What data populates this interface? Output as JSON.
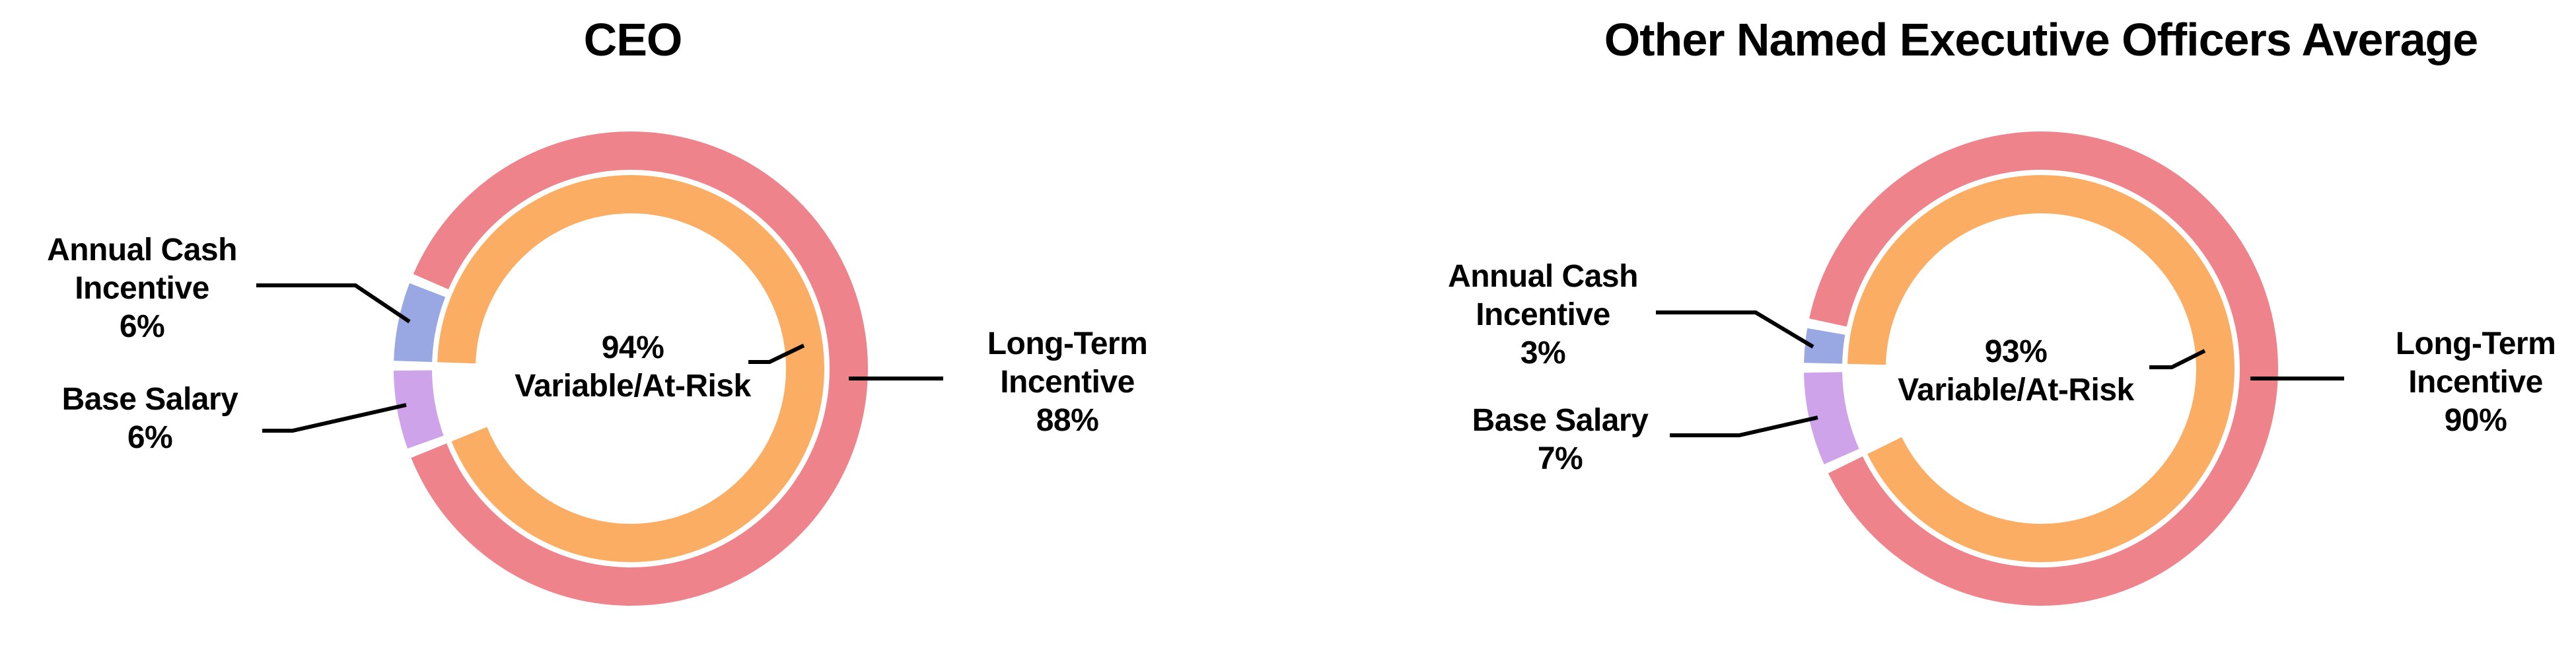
{
  "chart_data": [
    {
      "type": "donut",
      "title": "CEO",
      "legend_position": "none",
      "center_label": {
        "line1": "94%",
        "line2": "Variable/At-Risk"
      },
      "inner_ring": {
        "name": "variable-at-risk",
        "value": 94,
        "color": "#fbae63"
      },
      "segments": [
        {
          "name": "base-salary",
          "value": 6,
          "color": "#cea3ea",
          "label_lines": [
            "Base Salary"
          ],
          "pct_label": "6%"
        },
        {
          "name": "annual-cash-incentive",
          "value": 6,
          "color": "#99a8e3",
          "label_lines": [
            "Annual Cash",
            "Incentive"
          ],
          "pct_label": "6%"
        },
        {
          "name": "long-term-incentive",
          "value": 88,
          "color": "#ef838b",
          "label_lines": [
            "Long-Term",
            "Incentive"
          ],
          "pct_label": "88%"
        }
      ]
    },
    {
      "type": "donut",
      "title": "Other Named Executive Officers Average",
      "legend_position": "none",
      "center_label": {
        "line1": "93%",
        "line2": "Variable/At-Risk"
      },
      "inner_ring": {
        "name": "variable-at-risk",
        "value": 93,
        "color": "#fbae63"
      },
      "segments": [
        {
          "name": "base-salary",
          "value": 7,
          "color": "#cea3ea",
          "label_lines": [
            "Base Salary"
          ],
          "pct_label": "7%"
        },
        {
          "name": "annual-cash-incentive",
          "value": 3,
          "color": "#99a8e3",
          "label_lines": [
            "Annual Cash",
            "Incentive"
          ],
          "pct_label": "3%"
        },
        {
          "name": "long-term-incentive",
          "value": 90,
          "color": "#ef838b",
          "label_lines": [
            "Long-Term",
            "Incentive"
          ],
          "pct_label": "90%"
        }
      ]
    }
  ],
  "colors": {
    "background": "#ffffff",
    "leader_line": "#000000",
    "text": "#000000",
    "long_term_incentive": "#ef838b",
    "annual_cash_incentive": "#99a8e3",
    "base_salary": "#cea3ea",
    "variable_at_risk": "#fbae63"
  }
}
